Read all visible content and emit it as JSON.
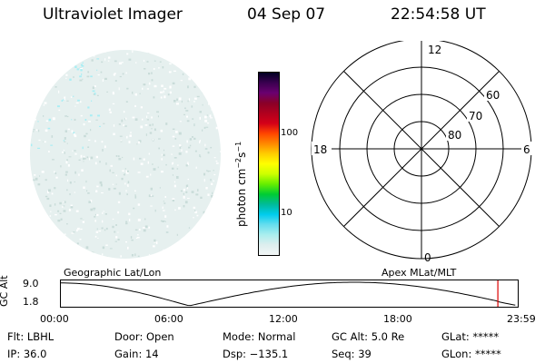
{
  "header": {
    "instrument": "Ultraviolet Imager",
    "date": "04 Sep 07",
    "time": "22:54:58 UT"
  },
  "colorbar": {
    "unit_label": "photon cm",
    "unit_exp1": "−2",
    "unit_mid": "s",
    "unit_exp2": "−1",
    "ticks": [
      "100",
      "10"
    ],
    "colors": [
      "#000022",
      "#3a0050",
      "#6a0070",
      "#8a0028",
      "#b0001e",
      "#d40018",
      "#ff4400",
      "#ff8800",
      "#ffcc00",
      "#ffff00",
      "#ccff00",
      "#66ee00",
      "#00cc33",
      "#00bb99",
      "#00ccee",
      "#66ddee",
      "#aaeeee",
      "#ddeeee",
      "#f2f6f6"
    ]
  },
  "polar": {
    "mlt_top": "12",
    "mlt_left": "18",
    "mlt_right": "6",
    "mlt_bottom": "0",
    "lat_labels": [
      "60",
      "70",
      "80"
    ]
  },
  "timeline": {
    "left_title": "Geographic Lat/Lon",
    "right_title": "Apex MLat/MLT",
    "y_axis_label": "GC Alt",
    "y_max": "9.0",
    "y_min": "1.8",
    "x_ticks": [
      "00:00",
      "06:00",
      "12:00",
      "18:00",
      "23:59"
    ],
    "current_time_marker": "22:55"
  },
  "footer": {
    "flt": "Flt: LBHL",
    "ip": "IP: 36.0",
    "door": "Door: Open",
    "gain": "Gain: 14",
    "mode": "Mode: Normal",
    "dsp": "Dsp: −135.1",
    "gcalt": "GC Alt: 5.0 Re",
    "seq": "Seq: 39",
    "glat": "GLat: *****",
    "glon": "GLon: *****"
  },
  "colors": {
    "disk_base": "#e6f0ef",
    "disk_speck": "#c9dcd9",
    "disk_cyan": "#a9eef4",
    "marker_line": "#dd0000"
  }
}
